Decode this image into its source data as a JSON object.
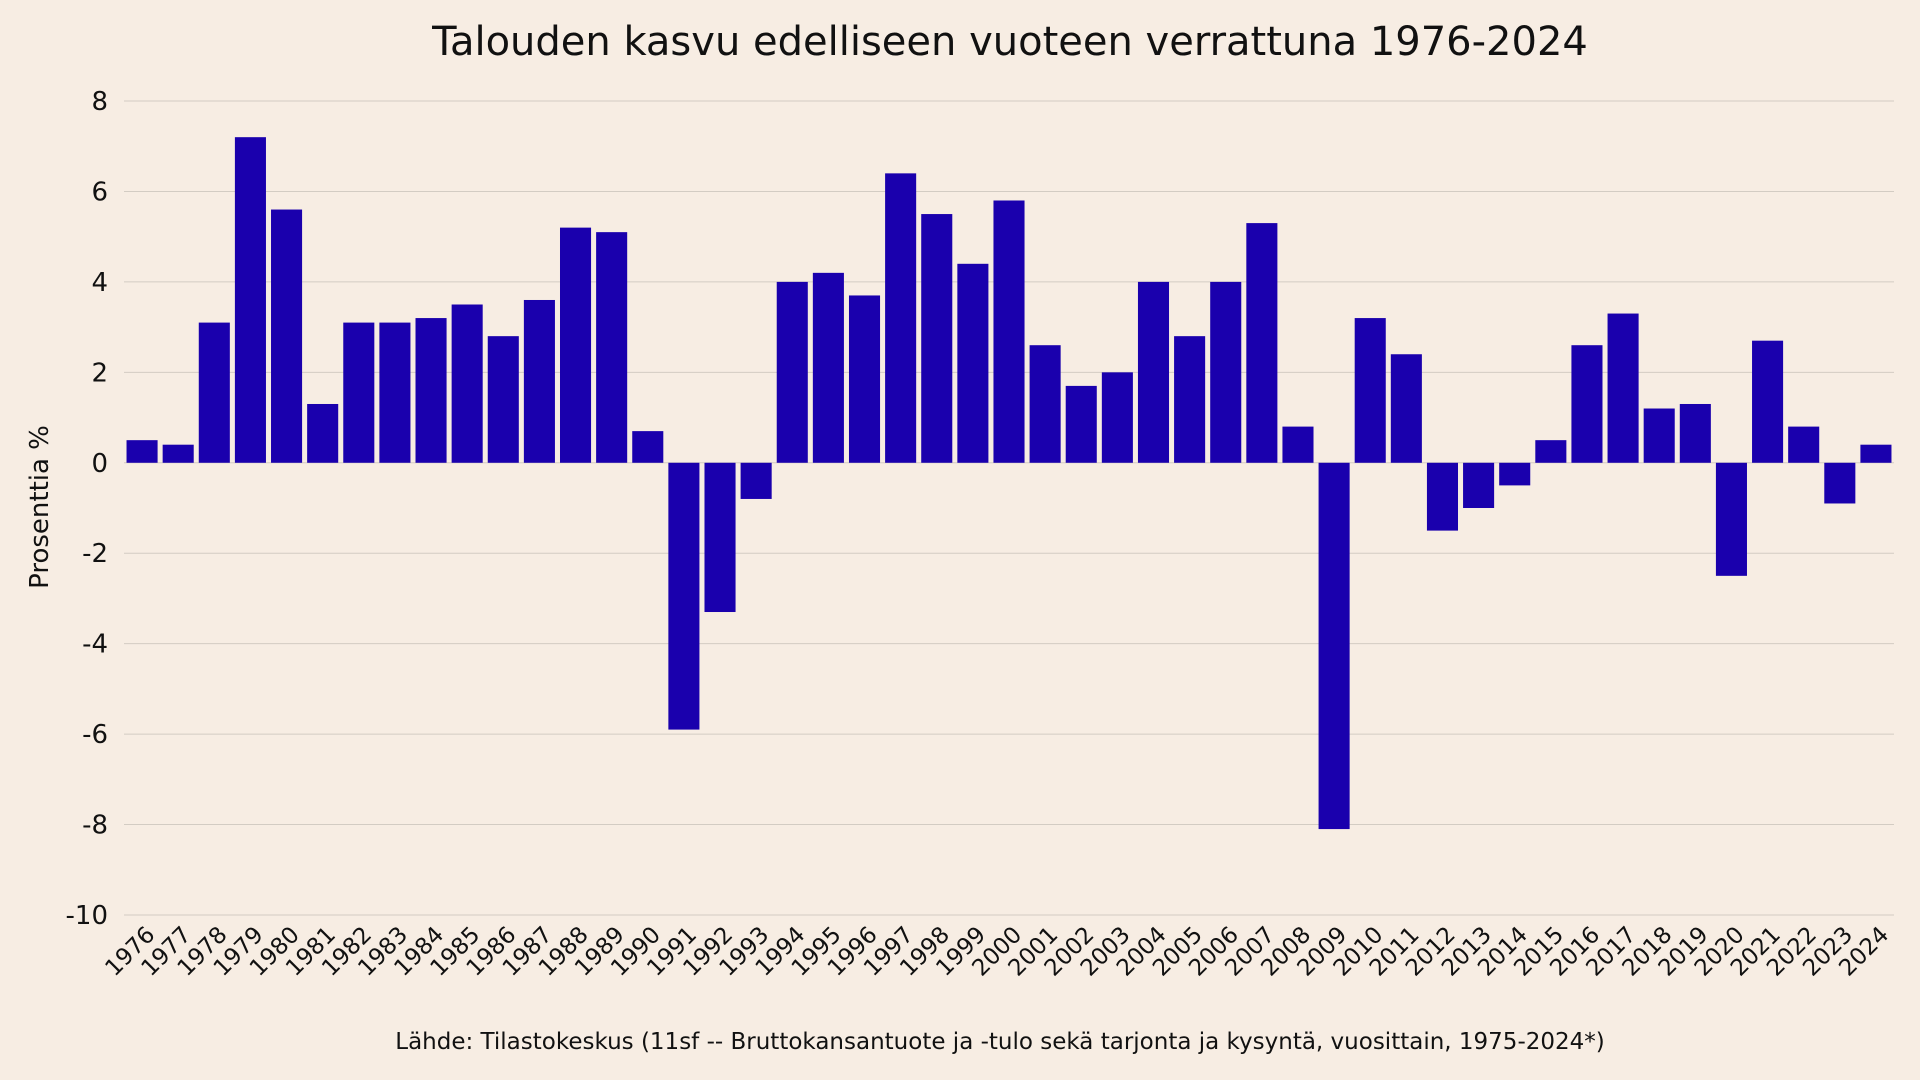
{
  "chart_data": {
    "type": "bar",
    "title": "Talouden kasvu edelliseen vuoteen verrattuna 1976-2024",
    "ylabel": "Prosenttia %",
    "xlabel": "",
    "source": "Lähde: Tilastokeskus (11sf -- Bruttokansantuote ja -tulo sekä tarjonta ja kysyntä, vuosittain, 1975-2024*)",
    "ylim": [
      -10,
      8
    ],
    "yticks": [
      8,
      6,
      4,
      2,
      0,
      -2,
      -4,
      -6,
      -8,
      -10
    ],
    "grid": true,
    "bar_color": "#1a00ad",
    "background_color": "#f7ede3",
    "categories": [
      "1976",
      "1977",
      "1978",
      "1979",
      "1980",
      "1981",
      "1982",
      "1983",
      "1984",
      "1985",
      "1986",
      "1987",
      "1988",
      "1989",
      "1990",
      "1991",
      "1992",
      "1993",
      "1994",
      "1995",
      "1996",
      "1997",
      "1998",
      "1999",
      "2000",
      "2001",
      "2002",
      "2003",
      "2004",
      "2005",
      "2006",
      "2007",
      "2008",
      "2009",
      "2010",
      "2011",
      "2012",
      "2013",
      "2014",
      "2015",
      "2016",
      "2017",
      "2018",
      "2019",
      "2020",
      "2021",
      "2022",
      "2023",
      "2024"
    ],
    "values": [
      0.5,
      0.4,
      3.1,
      7.2,
      5.6,
      1.3,
      3.1,
      3.1,
      3.2,
      3.5,
      2.8,
      3.6,
      5.2,
      5.1,
      0.7,
      -5.9,
      -3.3,
      -0.8,
      4.0,
      4.2,
      3.7,
      6.4,
      5.5,
      4.4,
      5.8,
      2.6,
      1.7,
      2.0,
      4.0,
      2.8,
      4.0,
      5.3,
      0.8,
      -8.1,
      3.2,
      2.4,
      -1.5,
      -1.0,
      -0.5,
      0.5,
      2.6,
      3.3,
      1.2,
      1.3,
      -2.5,
      2.7,
      0.8,
      -0.9,
      0.4
    ]
  }
}
